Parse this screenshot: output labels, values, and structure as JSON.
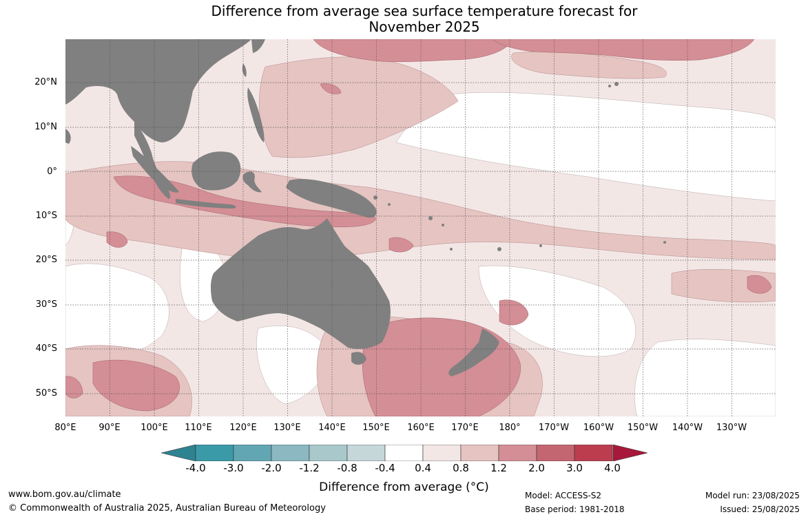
{
  "title_line1": "Difference from average sea surface temperature forecast for",
  "title_line2": "November 2025",
  "lat_labels": [
    "20°N",
    "10°N",
    "0°",
    "10°S",
    "20°S",
    "30°S",
    "40°S",
    "50°S"
  ],
  "lon_labels": [
    "80°E",
    "90°E",
    "100°E",
    "110°E",
    "120°E",
    "130°E",
    "140°E",
    "150°E",
    "160°E",
    "170°E",
    "180°",
    "170°W",
    "160°W",
    "150°W",
    "140°W",
    "130°W"
  ],
  "colorbar": {
    "ticks": [
      "-4.0",
      "-3.0",
      "-2.0",
      "-1.2",
      "-0.8",
      "-0.4",
      "0.4",
      "0.8",
      "1.2",
      "2.0",
      "3.0",
      "4.0"
    ],
    "colors": [
      "#3a9aa8",
      "#62a6b3",
      "#8bb8c1",
      "#a8c8cc",
      "#c6d7d9",
      "#ffffff",
      "#f3e7e6",
      "#e5c4c1",
      "#d48e95",
      "#c46572",
      "#bc3d4e",
      "#a8183a"
    ],
    "low_color": "#2e8391",
    "high_color": "#a8183a",
    "label": "Difference from average (°C)"
  },
  "land_color": "#808080",
  "footer": {
    "website": "www.bom.gov.au/climate",
    "copyright": "© Commonwealth of Australia 2025, Australian Bureau of Meteorology",
    "model": "Model: ACCESS-S2",
    "base_period": "Base period: 1981-2018",
    "model_run": "Model run: 23/08/2025",
    "issued": "Issued: 25/08/2025"
  }
}
